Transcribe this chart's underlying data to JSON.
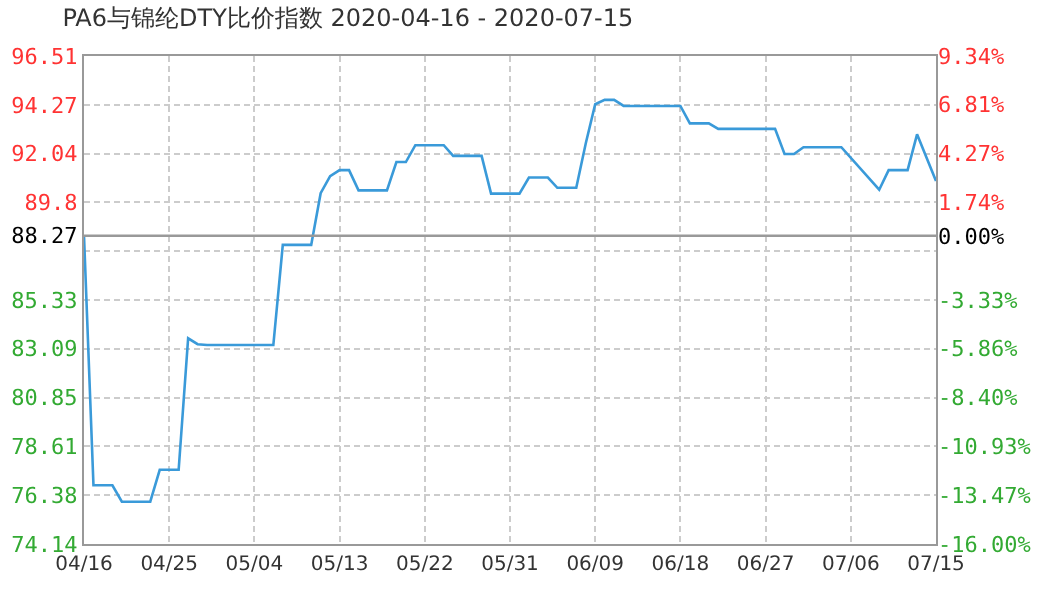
{
  "chart_data": {
    "type": "line",
    "title": "PA6与锦纶DTY比价指数 2020-04-16 - 2020-07-15",
    "x": [
      "2020-04-16",
      "2020-04-17",
      "2020-04-19",
      "2020-04-20",
      "2020-04-23",
      "2020-04-24",
      "2020-04-26",
      "2020-04-27",
      "2020-04-28",
      "2020-04-29",
      "2020-05-06",
      "2020-05-07",
      "2020-05-10",
      "2020-05-11",
      "2020-05-12",
      "2020-05-13",
      "2020-05-14",
      "2020-05-15",
      "2020-05-18",
      "2020-05-19",
      "2020-05-20",
      "2020-05-21",
      "2020-05-24",
      "2020-05-25",
      "2020-05-28",
      "2020-05-29",
      "2020-06-01",
      "2020-06-02",
      "2020-06-04",
      "2020-06-05",
      "2020-06-07",
      "2020-06-08",
      "2020-06-09",
      "2020-06-10",
      "2020-06-11",
      "2020-06-12",
      "2020-06-18",
      "2020-06-19",
      "2020-06-21",
      "2020-06-22",
      "2020-06-28",
      "2020-06-29",
      "2020-06-30",
      "2020-07-01",
      "2020-07-05",
      "2020-07-09",
      "2020-07-10",
      "2020-07-12",
      "2020-07-13",
      "2020-07-15"
    ],
    "series": [
      {
        "color": "#3a9ad9",
        "values": [
          88.27,
          76.83,
          76.83,
          76.08,
          76.08,
          77.54,
          77.54,
          83.57,
          83.3,
          83.26,
          83.26,
          87.85,
          87.85,
          90.22,
          91.0,
          91.28,
          91.28,
          90.35,
          90.35,
          91.65,
          91.65,
          92.42,
          92.42,
          91.93,
          91.93,
          90.2,
          90.2,
          90.94,
          90.94,
          90.47,
          90.47,
          92.5,
          94.3,
          94.5,
          94.5,
          94.22,
          94.22,
          93.42,
          93.42,
          93.17,
          93.17,
          92.02,
          92.02,
          92.33,
          92.33,
          90.38,
          91.28,
          91.28,
          92.92,
          90.78
        ]
      }
    ],
    "xlim": [
      "2020-04-16",
      "2020-07-15"
    ],
    "xticks": [
      {
        "value": "2020-04-16",
        "label": "04/16"
      },
      {
        "value": "2020-04-25",
        "label": "04/25"
      },
      {
        "value": "2020-05-04",
        "label": "05/04"
      },
      {
        "value": "2020-05-13",
        "label": "05/13"
      },
      {
        "value": "2020-05-22",
        "label": "05/22"
      },
      {
        "value": "2020-05-31",
        "label": "05/31"
      },
      {
        "value": "2020-06-09",
        "label": "06/09"
      },
      {
        "value": "2020-06-18",
        "label": "06/18"
      },
      {
        "value": "2020-06-27",
        "label": "06/27"
      },
      {
        "value": "2020-07-06",
        "label": "07/06"
      },
      {
        "value": "2020-07-15",
        "label": "07/15"
      }
    ],
    "ylim": [
      74.14,
      96.51
    ],
    "yticks": [
      74.14,
      76.38,
      78.61,
      80.85,
      83.09,
      85.33,
      {
        "value": 87.57,
        "label": null
      },
      88.27,
      89.8,
      92.04,
      94.27,
      96.51
    ],
    "y2lim": [
      -16,
      9.34
    ],
    "y2ticks": [
      {
        "value": -16,
        "label": "-16.00%"
      },
      {
        "value": -13.47,
        "label": "-13.47%"
      },
      {
        "value": -10.93,
        "label": "-10.93%"
      },
      {
        "value": -8.4,
        "label": "-8.40%"
      },
      {
        "value": -5.86,
        "label": "-5.86%"
      },
      {
        "value": -3.33,
        "label": "-3.33%"
      },
      {
        "value": 0,
        "label": "0.00%"
      },
      {
        "value": 1.74,
        "label": "1.74%"
      },
      {
        "value": 4.27,
        "label": "4.27%"
      },
      {
        "value": 6.81,
        "label": "6.81%"
      },
      {
        "value": 9.34,
        "label": "9.34%"
      }
    ],
    "ref_lines": [
      {
        "axis": "y",
        "value": 88.27,
        "color": "#999999"
      }
    ],
    "grid": true,
    "marker": "none",
    "line_style": "solid"
  }
}
